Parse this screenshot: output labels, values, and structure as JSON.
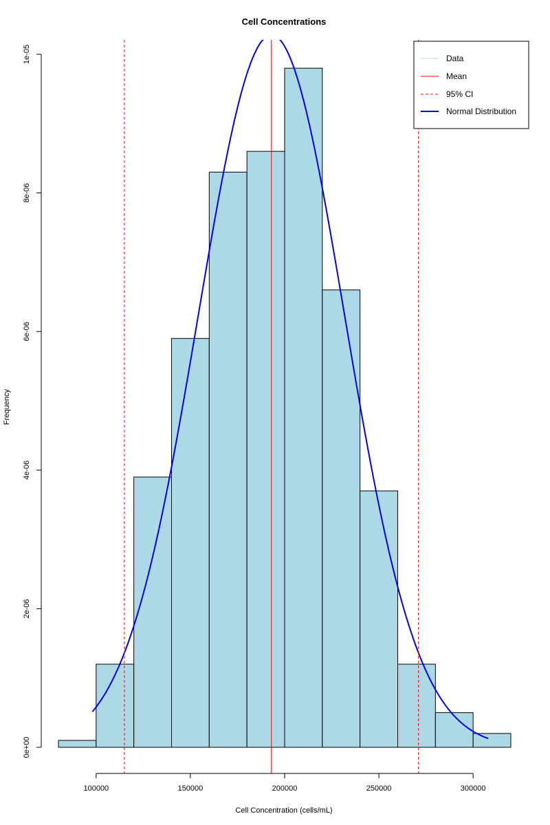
{
  "chart_data": {
    "type": "bar",
    "title": "Cell Concentrations",
    "xlabel": "Cell Concentration (cells/mL)",
    "ylabel": "Frequency",
    "xlim": [
      80000,
      320000
    ],
    "ylim": [
      0,
      1e-05
    ],
    "x_ticks": [
      100000,
      150000,
      200000,
      250000,
      300000
    ],
    "x_tick_labels": [
      "100000",
      "150000",
      "200000",
      "250000",
      "300000"
    ],
    "y_ticks": [
      0,
      2e-06,
      4e-06,
      6e-06,
      8e-06,
      1e-05
    ],
    "y_tick_labels": [
      "0e+00",
      "2e-06",
      "4e-06",
      "6e-06",
      "8e-06",
      "1e-05"
    ],
    "bin_edges": [
      80000,
      100000,
      120000,
      140000,
      160000,
      180000,
      200000,
      220000,
      240000,
      260000,
      280000,
      300000,
      320000
    ],
    "values": [
      1e-07,
      1.2e-06,
      3.9e-06,
      5.9e-06,
      8.3e-06,
      8.6e-06,
      9.8e-06,
      6.6e-06,
      3.7e-06,
      1.2e-06,
      5e-07,
      2e-07
    ],
    "mean": 193000,
    "ci95": [
      115000,
      271000
    ],
    "normal_curve": {
      "mean": 193000,
      "sd": 38800,
      "x_range": [
        98000,
        308000
      ]
    },
    "legend": {
      "position": "top-right",
      "entries": [
        {
          "label": "Data",
          "color": "#add8e6",
          "style": "solid"
        },
        {
          "label": "Mean",
          "color": "#ff0000",
          "style": "solid"
        },
        {
          "label": "95% CI",
          "color": "#ff0000",
          "style": "dashed"
        },
        {
          "label": "Normal Distribution",
          "color": "#0000ee",
          "style": "solid-thick"
        }
      ]
    },
    "colors": {
      "bar_fill": "#add8e6",
      "bar_stroke": "#000000",
      "mean_line": "#ff0000",
      "ci_line": "#ff0000",
      "curve": "#0000ee"
    }
  }
}
